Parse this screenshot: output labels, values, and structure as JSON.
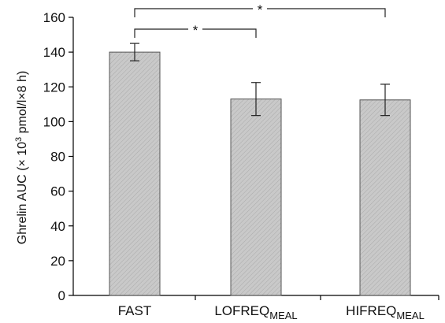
{
  "chart_data": {
    "type": "bar",
    "categories": [
      {
        "main": "FAST",
        "sub": ""
      },
      {
        "main": "LOFREQ",
        "sub": "MEAL"
      },
      {
        "main": "HIFREQ",
        "sub": "MEAL"
      }
    ],
    "values": [
      140,
      113,
      112.5
    ],
    "errors": [
      5,
      9.5,
      9
    ],
    "ylabel": {
      "main": "Ghrelin AUC (× 10",
      "sup": "3",
      "rest": " pmol/l×8 h)"
    },
    "ylim": [
      0,
      160
    ],
    "yticks": [
      "0",
      "20",
      "40",
      "60",
      "80",
      "100",
      "120",
      "140",
      "160"
    ],
    "significance": [
      {
        "from": 0,
        "to": 1,
        "label": "*"
      },
      {
        "from": 0,
        "to": 2,
        "label": "*"
      }
    ],
    "bar_color": "#c8c8c8",
    "grid": false,
    "legend": "none"
  }
}
